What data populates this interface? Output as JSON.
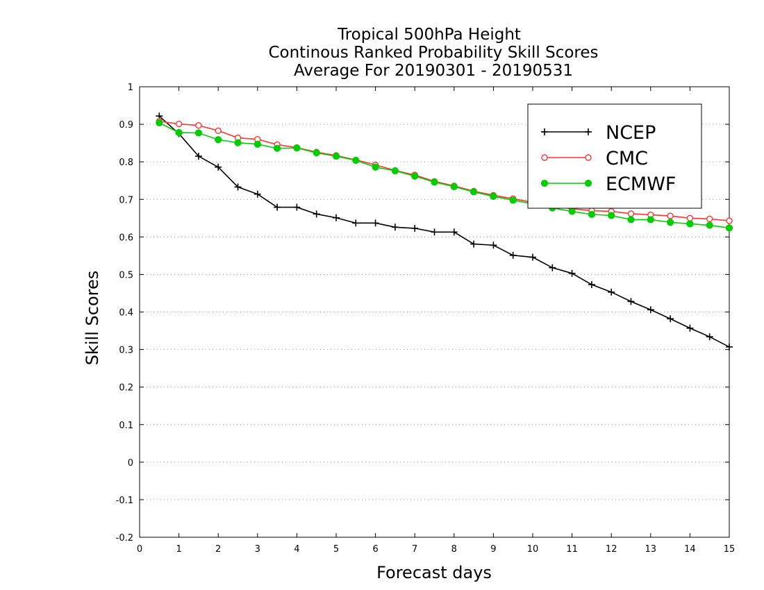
{
  "chart_data": {
    "type": "line",
    "title": [
      "Tropical 500hPa Height",
      "Continous Ranked Probability Skill Scores",
      "Average For 20190301 - 20190531"
    ],
    "xlabel": "Forecast days",
    "ylabel": "Skill Scores",
    "xlim": [
      0,
      15
    ],
    "ylim": [
      -0.2,
      1
    ],
    "xticks": [
      "0",
      "1",
      "2",
      "3",
      "4",
      "5",
      "6",
      "7",
      "8",
      "9",
      "10",
      "11",
      "12",
      "13",
      "14",
      "15"
    ],
    "yticks": [
      "-0.2",
      "-0.1",
      "0",
      "0.1",
      "0.2",
      "0.3",
      "0.4",
      "0.5",
      "0.6",
      "0.7",
      "0.8",
      "0.9",
      "1"
    ],
    "grid": "horizontal-dotted",
    "legend_position": "top-right",
    "x": [
      0.5,
      1,
      1.5,
      2,
      2.5,
      3,
      3.5,
      4,
      4.5,
      5,
      5.5,
      6,
      6.5,
      7,
      7.5,
      8,
      8.5,
      9,
      9.5,
      10,
      10.5,
      11,
      11.5,
      12,
      12.5,
      13,
      13.5,
      14,
      14.5,
      15
    ],
    "series": [
      {
        "name": "NCEP",
        "color": "#000000",
        "marker": "plus",
        "values": [
          0.922,
          0.875,
          0.815,
          0.786,
          0.733,
          0.714,
          0.679,
          0.679,
          0.661,
          0.651,
          0.637,
          0.637,
          0.626,
          0.623,
          0.613,
          0.613,
          0.581,
          0.578,
          0.551,
          0.546,
          0.518,
          0.503,
          0.473,
          0.453,
          0.428,
          0.406,
          0.382,
          0.357,
          0.334,
          0.307
        ]
      },
      {
        "name": "CMC",
        "color": "#ff3333",
        "marker": "open-circle",
        "values": [
          0.908,
          0.901,
          0.897,
          0.883,
          0.864,
          0.86,
          0.846,
          0.838,
          0.826,
          0.817,
          0.805,
          0.792,
          0.777,
          0.765,
          0.748,
          0.736,
          0.722,
          0.711,
          0.702,
          0.692,
          0.683,
          0.675,
          0.67,
          0.668,
          0.662,
          0.659,
          0.656,
          0.65,
          0.648,
          0.643
        ]
      },
      {
        "name": "ECMWF",
        "color": "#00cc00",
        "marker": "filled-circle",
        "values": [
          0.904,
          0.878,
          0.877,
          0.859,
          0.851,
          0.847,
          0.836,
          0.837,
          0.824,
          0.815,
          0.804,
          0.786,
          0.776,
          0.762,
          0.746,
          0.734,
          0.72,
          0.708,
          0.698,
          0.688,
          0.677,
          0.668,
          0.66,
          0.657,
          0.646,
          0.646,
          0.639,
          0.635,
          0.631,
          0.624
        ]
      }
    ]
  }
}
